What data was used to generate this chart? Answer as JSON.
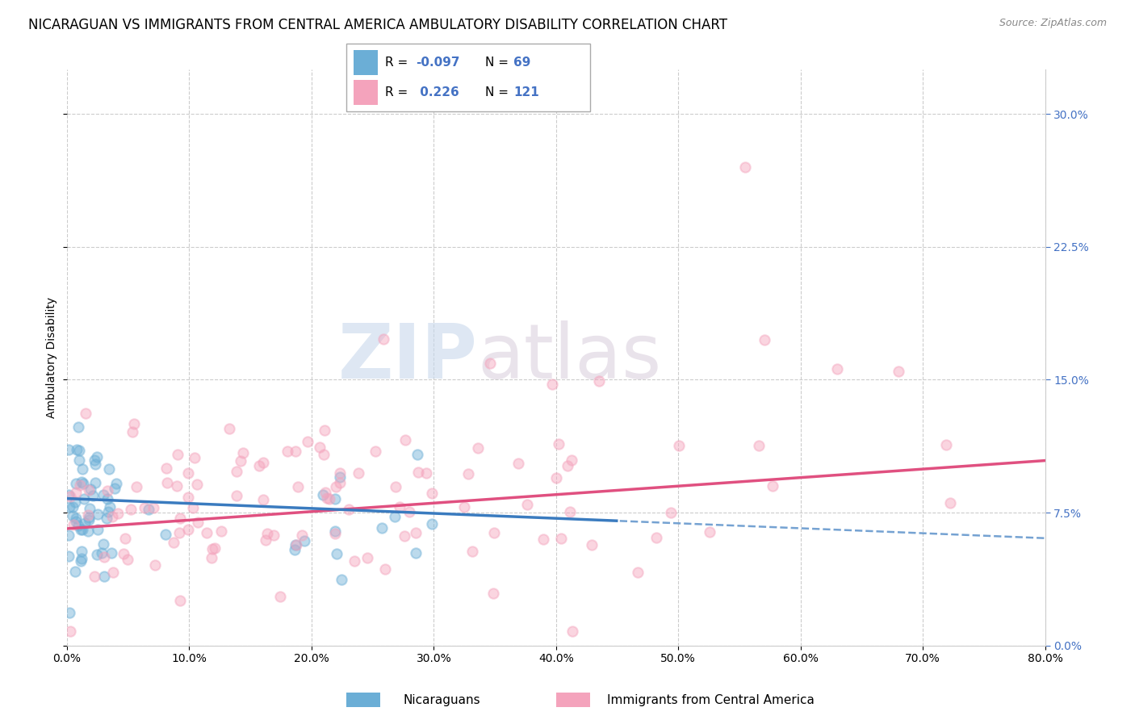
{
  "title": "NICARAGUAN VS IMMIGRANTS FROM CENTRAL AMERICA AMBULATORY DISABILITY CORRELATION CHART",
  "source": "Source: ZipAtlas.com",
  "ylabel_label": "Ambulatory Disability",
  "xmin": 0.0,
  "xmax": 0.8,
  "ymin": 0.0,
  "ymax": 0.325,
  "R_blue": -0.097,
  "N_blue": 69,
  "R_pink": 0.226,
  "N_pink": 121,
  "blue_scatter_color": "#6baed6",
  "pink_scatter_color": "#f4a3bc",
  "blue_line_color": "#3a7bbf",
  "pink_line_color": "#e05080",
  "watermark_zip": "ZIP",
  "watermark_atlas": "atlas",
  "legend_labels": [
    "Nicaraguans",
    "Immigrants from Central America"
  ],
  "title_fontsize": 12,
  "axis_fontsize": 10,
  "tick_fontsize": 10,
  "right_tick_color": "#4472c4"
}
